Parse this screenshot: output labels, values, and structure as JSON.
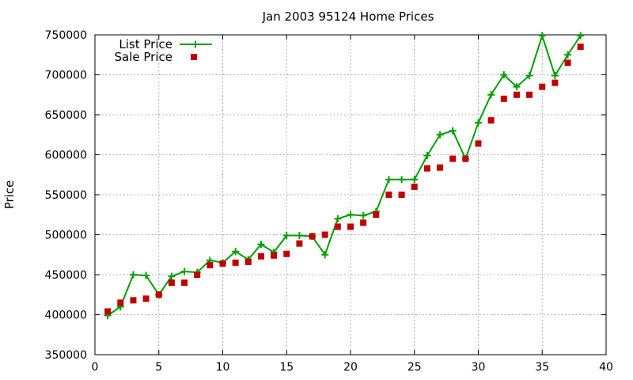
{
  "chart_data": {
    "type": "line",
    "title": "Jan 2003 95124 Home Prices",
    "xlabel": "",
    "ylabel": "Price",
    "xlim": [
      0,
      40
    ],
    "ylim": [
      350000,
      750000
    ],
    "xticks": [
      0,
      5,
      10,
      15,
      20,
      25,
      30,
      35,
      40
    ],
    "yticks": [
      350000,
      400000,
      450000,
      500000,
      550000,
      600000,
      650000,
      700000,
      750000
    ],
    "grid": true,
    "legend_position": "top-left",
    "series": [
      {
        "name": "List Price",
        "style": "line-plus",
        "color": "#00a000",
        "x": [
          1,
          2,
          3,
          4,
          5,
          6,
          7,
          8,
          9,
          10,
          11,
          12,
          13,
          14,
          15,
          16,
          17,
          18,
          19,
          20,
          21,
          22,
          23,
          24,
          25,
          26,
          27,
          28,
          29,
          30,
          31,
          32,
          33,
          34,
          35,
          36,
          37,
          38
        ],
        "y": [
          399000,
          410000,
          450000,
          449000,
          425000,
          448000,
          454000,
          453000,
          468000,
          465000,
          479000,
          469000,
          488000,
          478000,
          499000,
          499000,
          498000,
          475000,
          520000,
          525000,
          524000,
          529000,
          569000,
          569000,
          569000,
          599000,
          625000,
          630000,
          595000,
          640000,
          675000,
          700000,
          685000,
          699000,
          749000,
          699000,
          725000,
          749000
        ]
      },
      {
        "name": "Sale Price",
        "style": "square-marker",
        "color": "#c00000",
        "x": [
          1,
          2,
          3,
          4,
          5,
          6,
          7,
          8,
          9,
          10,
          11,
          12,
          13,
          14,
          15,
          16,
          17,
          18,
          19,
          20,
          21,
          22,
          23,
          24,
          25,
          26,
          27,
          28,
          29,
          30,
          31,
          32,
          33,
          34,
          35,
          36,
          37,
          38
        ],
        "y": [
          404000,
          415000,
          418000,
          420000,
          425000,
          440000,
          440000,
          450000,
          462000,
          464000,
          465000,
          466000,
          473000,
          474000,
          476000,
          489000,
          498000,
          500000,
          510000,
          510000,
          515000,
          525000,
          550000,
          550000,
          560000,
          583000,
          584000,
          595000,
          595000,
          614000,
          643000,
          670000,
          675000,
          675000,
          685000,
          690000,
          715000,
          735000
        ]
      }
    ]
  }
}
